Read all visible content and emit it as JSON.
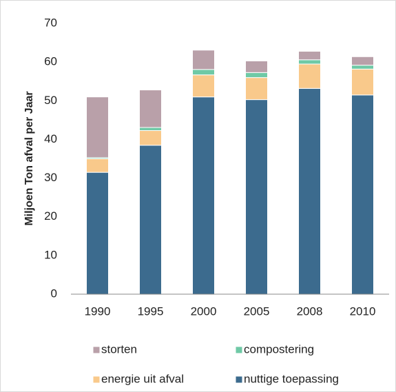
{
  "chart_data": {
    "type": "bar",
    "stacked": true,
    "ylabel": "Miljoen Ton afval per Jaar",
    "categories": [
      "1990",
      "1995",
      "2000",
      "2005",
      "2008",
      "2010"
    ],
    "series": [
      {
        "name": "nuttige toepassing",
        "color": "#3c6b8e",
        "values": [
          31.5,
          38.5,
          51.0,
          50.3,
          53.2,
          51.5
        ]
      },
      {
        "name": "energie uit afval",
        "color": "#f9c98b",
        "values": [
          3.5,
          3.8,
          5.7,
          5.7,
          6.3,
          6.7
        ]
      },
      {
        "name": "compostering",
        "color": "#6fc9a6",
        "values": [
          0.3,
          0.8,
          1.4,
          1.3,
          1.1,
          1.0
        ]
      },
      {
        "name": "storten",
        "color": "#b9a0a9",
        "values": [
          15.7,
          9.7,
          5.0,
          3.0,
          2.2,
          2.2
        ]
      }
    ],
    "ylim": [
      0,
      70
    ],
    "yticks": [
      0,
      10,
      20,
      30,
      40,
      50,
      60,
      70
    ]
  }
}
